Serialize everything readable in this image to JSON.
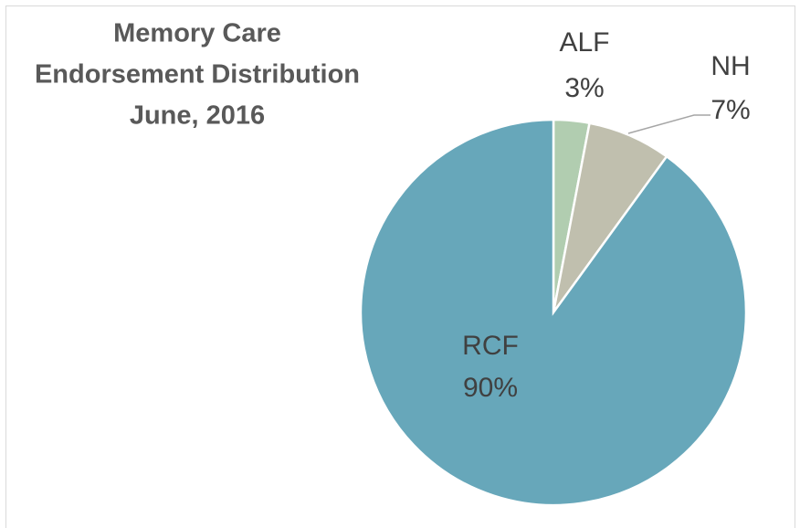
{
  "chart_data": {
    "type": "pie",
    "title": [
      "Memory Care",
      "Endorsement Distribution",
      "June, 2016"
    ],
    "categories": [
      "ALF",
      "NH",
      "RCF"
    ],
    "values": [
      3,
      7,
      90
    ],
    "value_labels": [
      "3%",
      "7%",
      "90%"
    ],
    "colors": [
      "#b1cdb0",
      "#c0bfae",
      "#67a7ba"
    ]
  }
}
